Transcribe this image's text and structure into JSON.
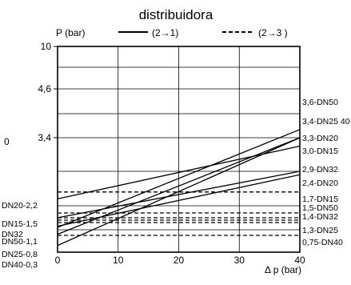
{
  "chart_data": {
    "type": "line",
    "title": "distribuidora",
    "ylabel": "P (bar)",
    "xlabel": "Δ p (bar)",
    "xlim": [
      0,
      40
    ],
    "x_ticks": [
      "0",
      "10",
      "20",
      "30",
      "40"
    ],
    "y_ticks": [
      "10",
      "4,6",
      "3,4"
    ],
    "legend": {
      "placement": "top",
      "entries": [
        {
          "label": "(2→1)",
          "style": "solid"
        },
        {
          "label": "(2→3 )",
          "style": "dashed"
        }
      ]
    },
    "left_labels": [
      {
        "text": "DN20-2,2",
        "value": 2.2
      },
      {
        "text": "DN15-1,5",
        "value": 1.5
      },
      {
        "text": "DN32",
        "value": 1.15
      },
      {
        "text": "DN50-1,1",
        "value": 1.1
      },
      {
        "text": "DN25-0,8",
        "value": 0.8
      },
      {
        "text": "DN40-0,3",
        "value": 0.3
      }
    ],
    "right_labels": [
      {
        "text": "3,6-DN50",
        "value": 3.6
      },
      {
        "text": "3,4-DN25 40",
        "value": 3.4
      },
      {
        "text": "3,3-DN20",
        "value": 3.3
      },
      {
        "text": "3,0-DN15",
        "value": 3.0
      },
      {
        "text": "2,9-DN32",
        "value": 2.9
      },
      {
        "text": "2,4-DN20",
        "value": 2.4
      },
      {
        "text": "1,7-DN15",
        "value": 1.7
      },
      {
        "text": "1,5-DN50",
        "value": 1.5
      },
      {
        "text": "1,4-DN32",
        "value": 1.4
      },
      {
        "text": "1,3-DN25",
        "value": 1.3
      },
      {
        "text": "0,75-DN40",
        "value": 0.75
      }
    ],
    "series_solid": [
      {
        "name": "DN50",
        "y0": 1.1,
        "y40": 3.6
      },
      {
        "name": "DN25",
        "y0": 0.8,
        "y40": 3.4
      },
      {
        "name": "DN40",
        "y0": 0.3,
        "y40": 3.4
      },
      {
        "name": "DN20",
        "y0": 2.2,
        "y40": 3.3
      },
      {
        "name": "DN15",
        "y0": 1.5,
        "y40": 3.0
      },
      {
        "name": "DN32",
        "y0": 1.15,
        "y40": 2.9
      }
    ],
    "series_dashed": [
      {
        "name": "DN20",
        "value": 2.4
      },
      {
        "name": "DN15",
        "value": 1.7
      },
      {
        "name": "DN50",
        "value": 1.5
      },
      {
        "name": "DN32",
        "value": 1.4
      },
      {
        "name": "DN25",
        "value": 1.3
      },
      {
        "name": "DN40",
        "value": 0.75
      }
    ],
    "stray_label": "0"
  }
}
